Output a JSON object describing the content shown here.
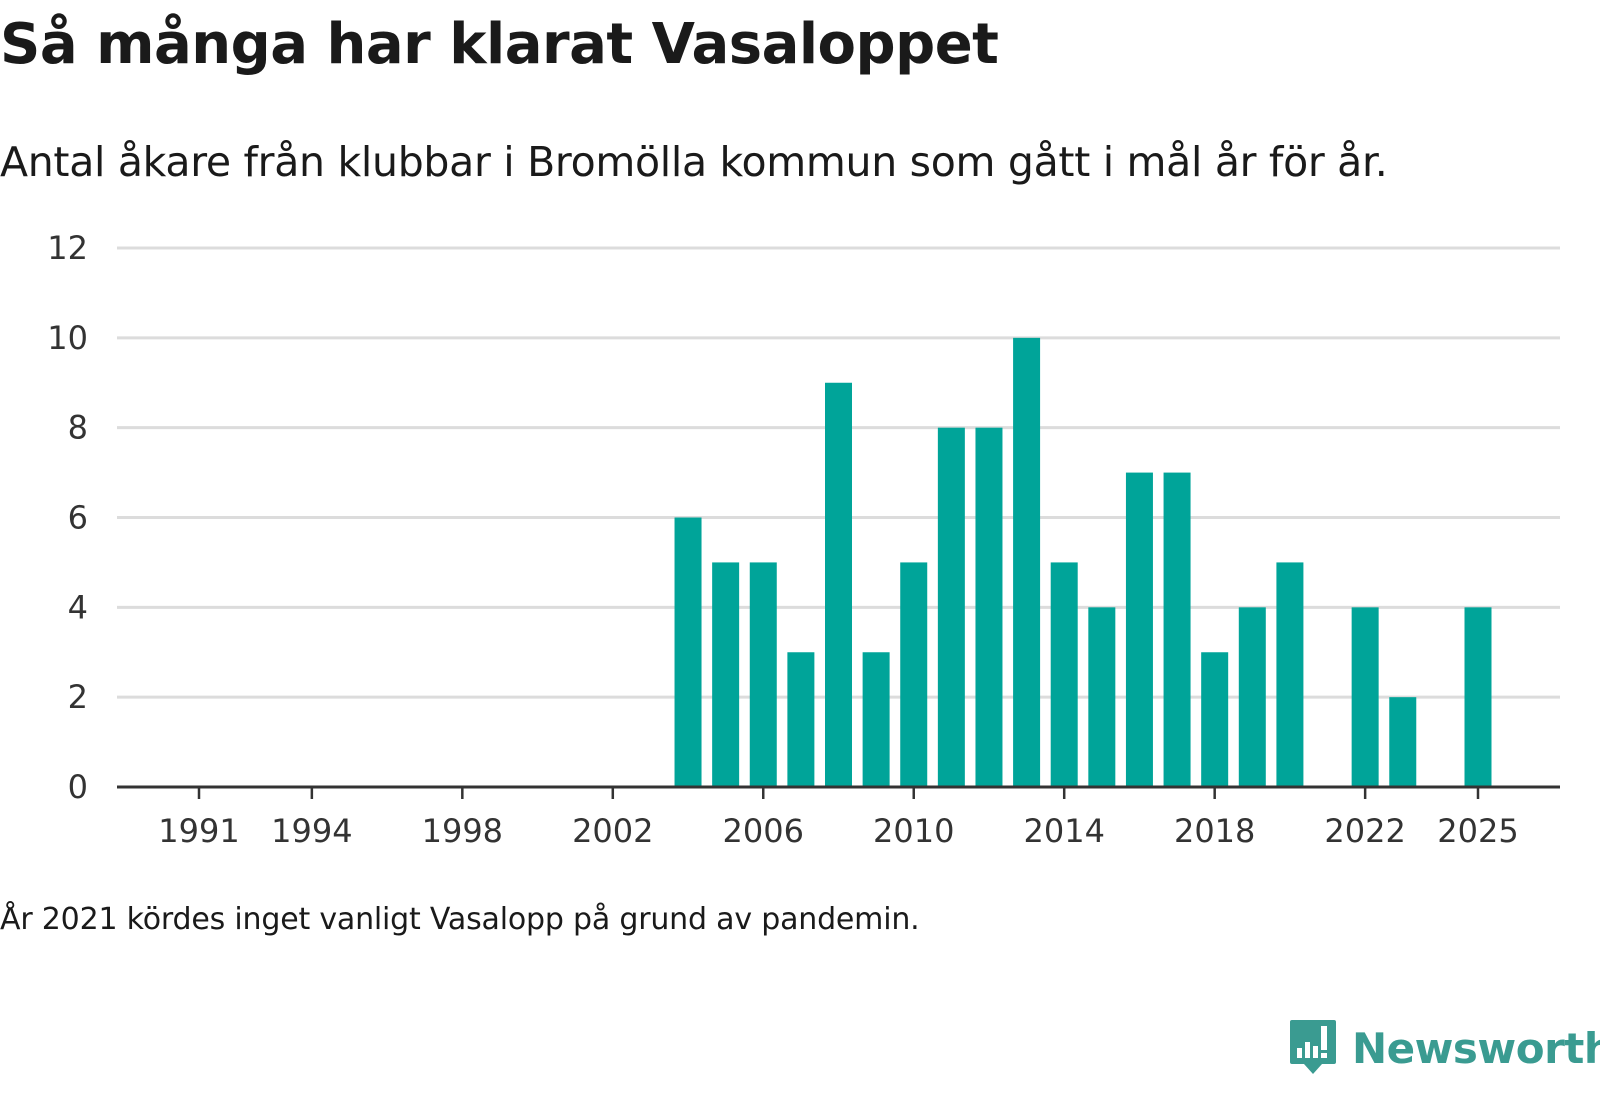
{
  "chart_data": {
    "type": "bar",
    "title": "Så många har klarat Vasaloppet",
    "subtitle": "Antal åkare från klubbar i Bromölla kommun som gått i mål år för år.",
    "note": "År 2021 kördes inget vanligt Vasalopp på grund av pandemin.",
    "xlabel": "",
    "ylabel": "",
    "ylim": [
      0,
      12
    ],
    "yticks": [
      0,
      2,
      4,
      6,
      8,
      10,
      12
    ],
    "xlim": [
      1991,
      2025
    ],
    "xticks": [
      1991,
      1994,
      1998,
      2002,
      2006,
      2010,
      2014,
      2018,
      2022,
      2025
    ],
    "grid": true,
    "color": "#00a499",
    "categories": [
      2004,
      2005,
      2006,
      2007,
      2008,
      2009,
      2010,
      2011,
      2012,
      2013,
      2014,
      2015,
      2016,
      2017,
      2018,
      2019,
      2020,
      2022,
      2023,
      2025
    ],
    "values": [
      6,
      5,
      5,
      3,
      9,
      3,
      5,
      8,
      8,
      10,
      5,
      4,
      7,
      7,
      3,
      4,
      5,
      4,
      2,
      4
    ]
  },
  "brand": {
    "name": "Newsworthy",
    "logo_icon": "bar-chart-speech-bubble-icon",
    "color": "#3a9b91"
  }
}
